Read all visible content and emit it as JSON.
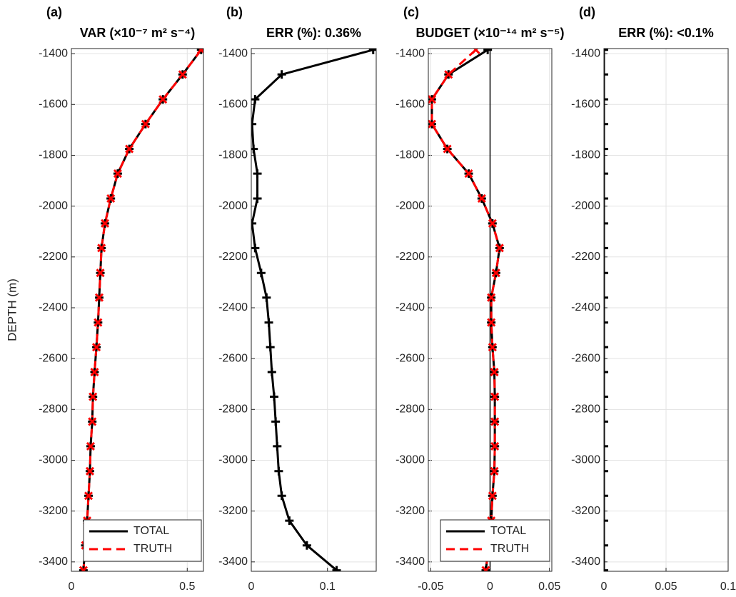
{
  "chart_data": [
    {
      "type": "line",
      "panel_label": "(a)",
      "title": "VAR (×10⁻⁷ m² s⁻⁴)",
      "ylabel": "DEPTH (m)",
      "y": [
        -1385,
        -1482,
        -1580,
        -1677,
        -1775,
        -1872,
        -1970,
        -2068,
        -2165,
        -2263,
        -2360,
        -2458,
        -2555,
        -2653,
        -2750,
        -2848,
        -2945,
        -3043,
        -3140,
        -3238,
        -3335,
        -3433
      ],
      "series": [
        {
          "name": "TOTAL",
          "color": "#000000",
          "marker": "+",
          "dash": false,
          "values": [
            0.56,
            0.48,
            0.395,
            0.32,
            0.25,
            0.2,
            0.17,
            0.145,
            0.13,
            0.125,
            0.12,
            0.115,
            0.108,
            0.1,
            0.093,
            0.09,
            0.083,
            0.08,
            0.074,
            0.068,
            0.06,
            0.052
          ]
        },
        {
          "name": "TRUTH",
          "color": "#ff0000",
          "marker": "x",
          "dash": true,
          "values": [
            0.56,
            0.48,
            0.395,
            0.32,
            0.25,
            0.2,
            0.17,
            0.145,
            0.13,
            0.125,
            0.12,
            0.115,
            0.108,
            0.1,
            0.093,
            0.09,
            0.083,
            0.08,
            0.074,
            0.068,
            0.06,
            0.052
          ]
        }
      ],
      "xlim": [
        0,
        0.57
      ],
      "xticks": [
        0,
        0.5
      ],
      "ylim": [
        -3437,
        -1380
      ],
      "yticks": [
        -1400,
        -1600,
        -1800,
        -2000,
        -2200,
        -2400,
        -2600,
        -2800,
        -3000,
        -3200,
        -3400
      ],
      "grid": true,
      "legend": "lower right"
    },
    {
      "type": "line",
      "panel_label": "(b)",
      "title": "ERR (%): 0.36%",
      "y": [
        -1385,
        -1482,
        -1580,
        -1677,
        -1775,
        -1872,
        -1970,
        -2068,
        -2165,
        -2263,
        -2360,
        -2458,
        -2555,
        -2653,
        -2750,
        -2848,
        -2945,
        -3043,
        -3140,
        -3238,
        -3335,
        -3433
      ],
      "series": [
        {
          "color": "#000000",
          "marker": "+",
          "dash": false,
          "values": [
            0.16,
            0.04,
            0.005,
            0.001,
            0.003,
            0.008,
            0.008,
            0.001,
            0.005,
            0.013,
            0.02,
            0.023,
            0.025,
            0.027,
            0.03,
            0.032,
            0.034,
            0.036,
            0.04,
            0.05,
            0.073,
            0.112
          ]
        }
      ],
      "xlim": [
        0,
        0.164
      ],
      "xticks": [
        0,
        0.1
      ],
      "ylim": [
        -3437,
        -1380
      ],
      "yticks": [
        -1400,
        -1600,
        -1800,
        -2000,
        -2200,
        -2400,
        -2600,
        -2800,
        -3000,
        -3200,
        -3400
      ],
      "grid": true
    },
    {
      "type": "line",
      "panel_label": "(c)",
      "title": "BUDGET (×10⁻¹⁴ m² s⁻⁵)",
      "y": [
        -1385,
        -1482,
        -1580,
        -1677,
        -1775,
        -1872,
        -1970,
        -2068,
        -2165,
        -2263,
        -2360,
        -2458,
        -2555,
        -2653,
        -2750,
        -2848,
        -2945,
        -3043,
        -3140,
        -3238,
        -3335,
        -3433
      ],
      "series": [
        {
          "name": "TOTAL",
          "color": "#000000",
          "marker": "+",
          "dash": false,
          "values": [
            -0.002,
            -0.035,
            -0.049,
            -0.049,
            -0.036,
            -0.018,
            -0.007,
            0.002,
            0.008,
            0.005,
            0.001,
            0.001,
            0.002,
            0.0036,
            0.004,
            0.004,
            0.004,
            0.0036,
            0.002,
            0.001,
            -0.001,
            -0.0036
          ]
        },
        {
          "name": "TRUTH",
          "color": "#ff0000",
          "marker": "x",
          "dash": true,
          "values": [
            -0.012,
            -0.035,
            -0.049,
            -0.049,
            -0.036,
            -0.018,
            -0.007,
            0.002,
            0.008,
            0.005,
            0.001,
            0.001,
            0.002,
            0.0036,
            0.004,
            0.004,
            0.004,
            0.0036,
            0.002,
            0.001,
            -0.001,
            -0.0036
          ]
        }
      ],
      "xlim": [
        -0.052,
        0.052
      ],
      "xticks": [
        -0.05,
        0,
        0.05
      ],
      "ylim": [
        -3437,
        -1380
      ],
      "yticks": [
        -1400,
        -1600,
        -1800,
        -2000,
        -2200,
        -2400,
        -2600,
        -2800,
        -3000,
        -3200,
        -3400
      ],
      "grid": true,
      "zero_line": 0,
      "legend": "lower right"
    },
    {
      "type": "line",
      "panel_label": "(d)",
      "title": "ERR (%): <0.1%",
      "y": [
        -1385,
        -1482,
        -1580,
        -1677,
        -1775,
        -1872,
        -1970,
        -2068,
        -2165,
        -2263,
        -2360,
        -2458,
        -2555,
        -2653,
        -2750,
        -2848,
        -2945,
        -3043,
        -3140,
        -3238,
        -3335,
        -3433
      ],
      "series": [
        {
          "color": "#000000",
          "marker": "+",
          "dash": false,
          "values": [
            0,
            0,
            0,
            0,
            0,
            0,
            0,
            0,
            0,
            0,
            0,
            0,
            0,
            0,
            0,
            0,
            0,
            0,
            0,
            0,
            0,
            0
          ]
        }
      ],
      "xlim": [
        0,
        0.1
      ],
      "xticks": [
        0,
        0.05,
        0.1
      ],
      "ylim": [
        -3437,
        -1380
      ],
      "yticks": [
        -1400,
        -1600,
        -1800,
        -2000,
        -2200,
        -2400,
        -2600,
        -2800,
        -3000,
        -3200,
        -3400
      ],
      "grid": true
    }
  ]
}
